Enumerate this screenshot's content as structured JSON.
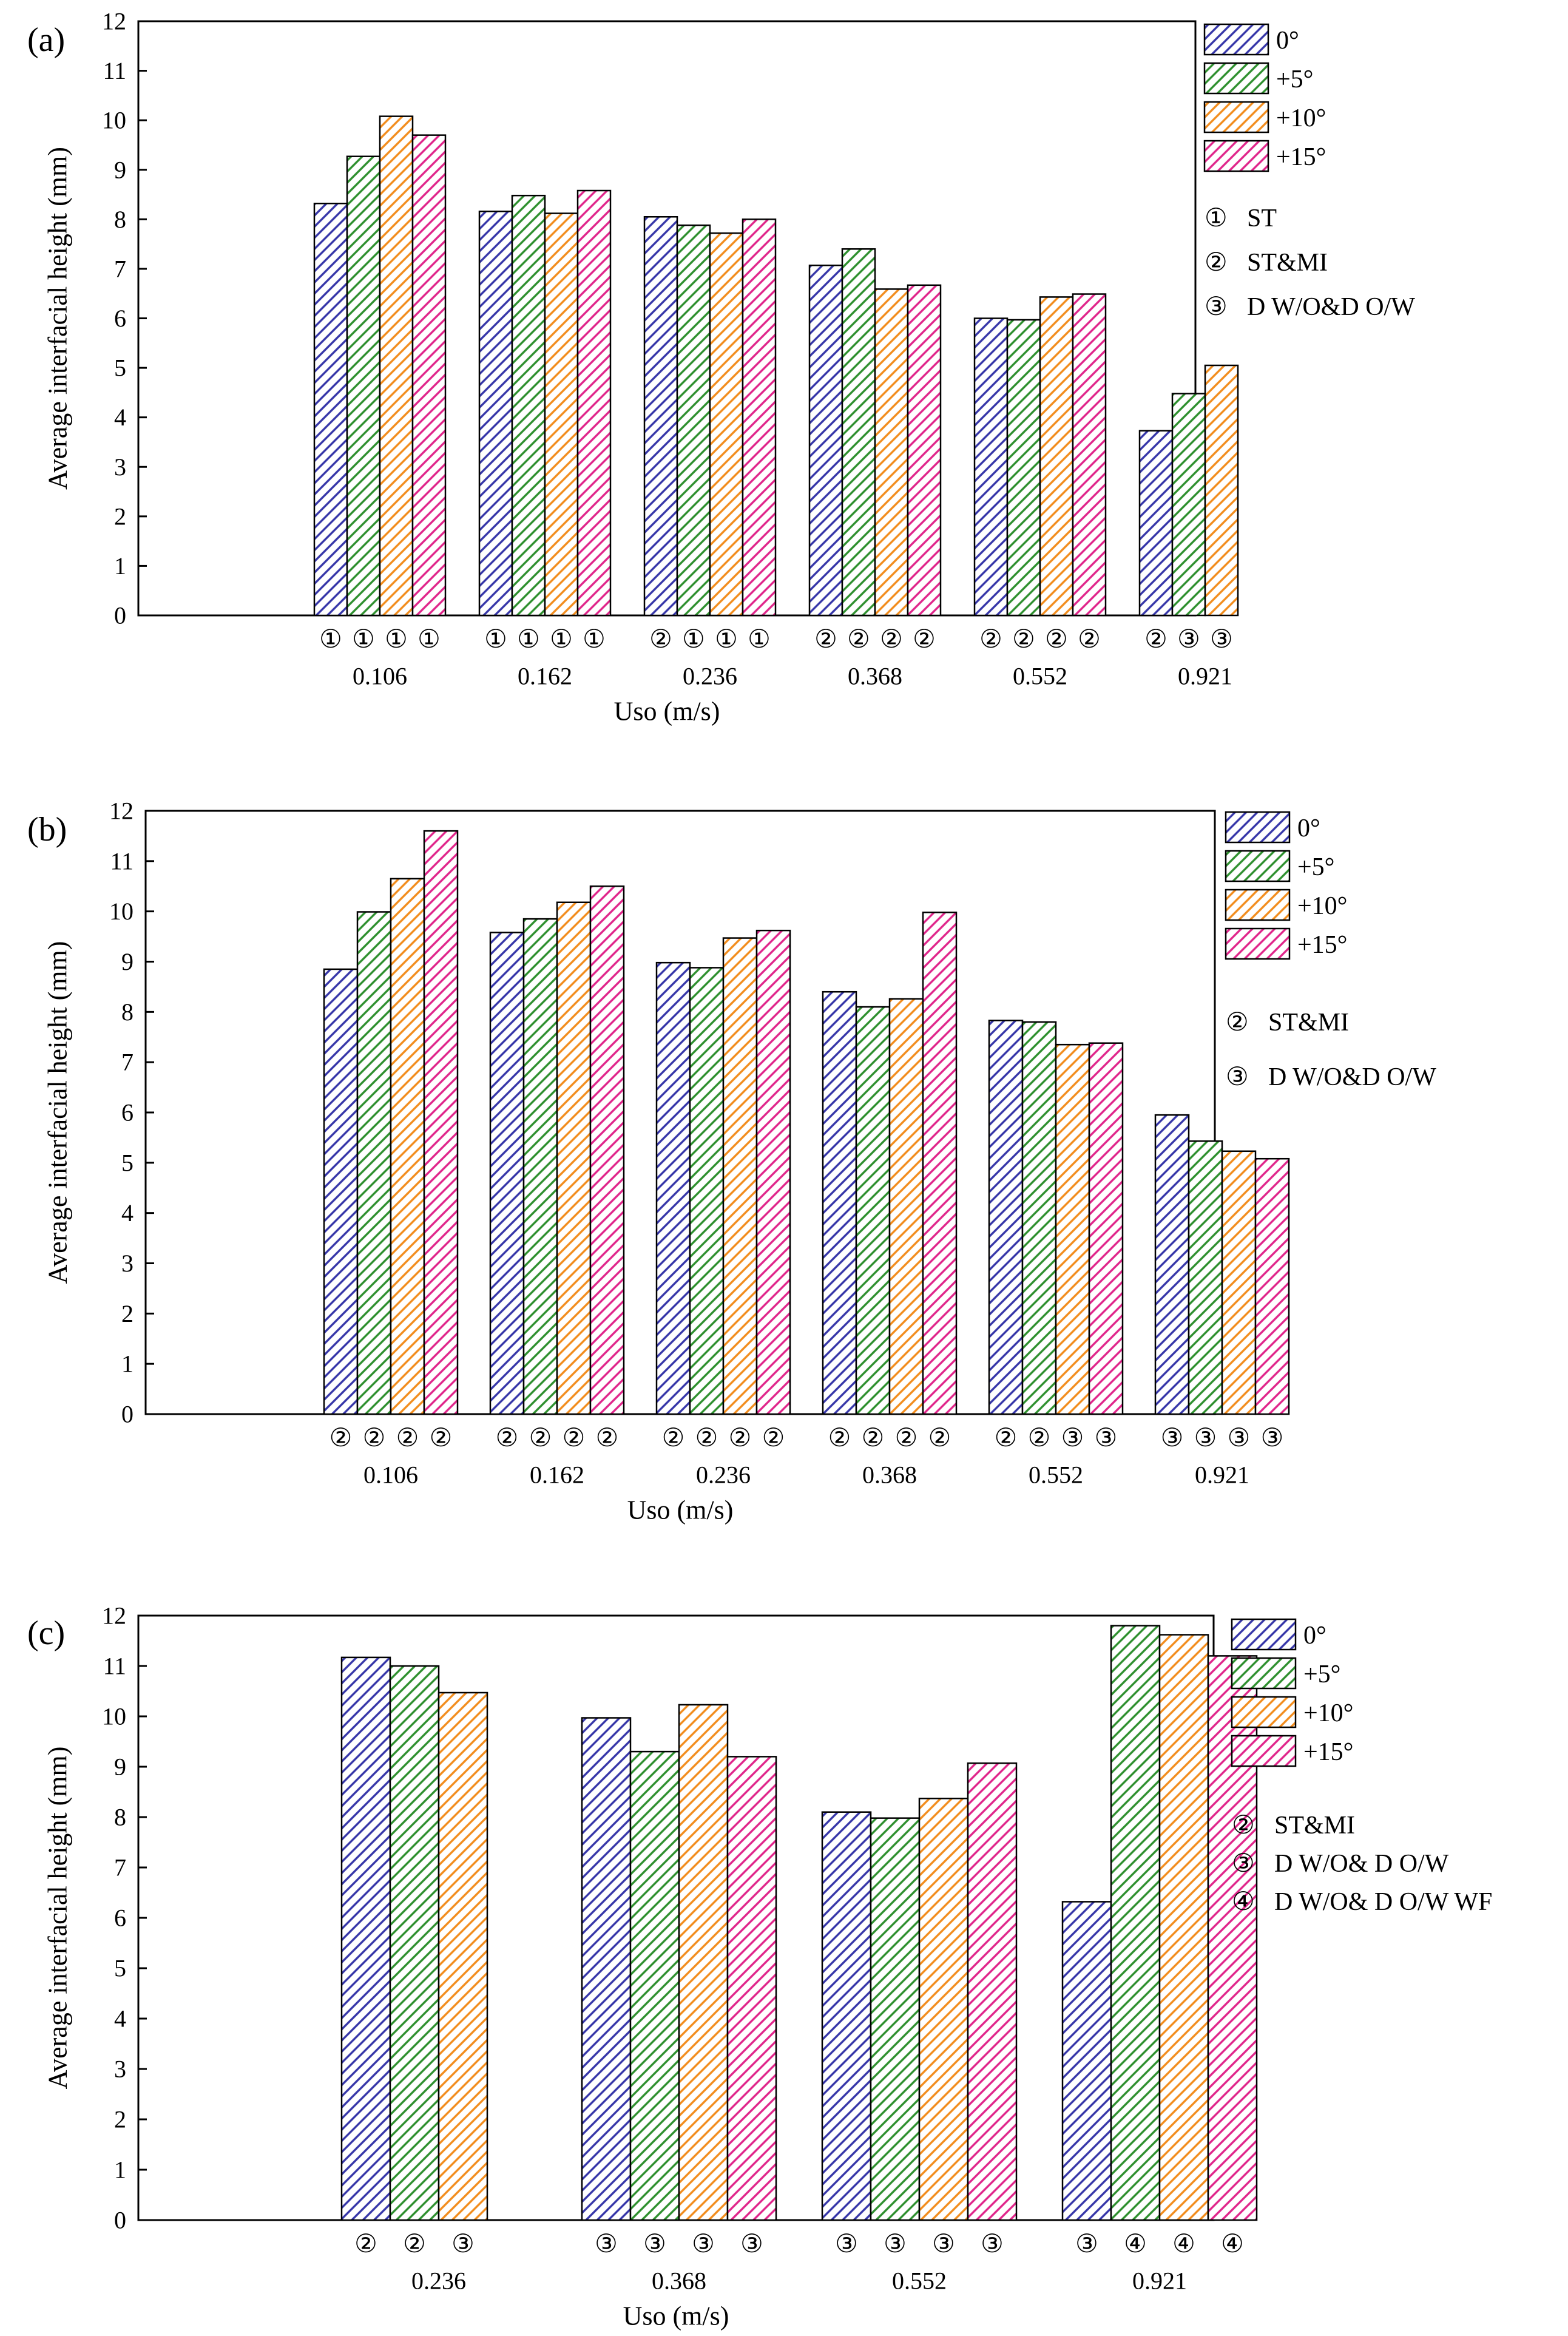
{
  "figure": {
    "legend_series": [
      {
        "name": "0°",
        "color": "#3535a8"
      },
      {
        "name": "+5°",
        "color": "#2d8f2d"
      },
      {
        "name": "+10°",
        "color": "#f28c1c"
      },
      {
        "name": "+15°",
        "color": "#e0248a"
      }
    ]
  },
  "chart_data": [
    {
      "type": "bar",
      "panel_label": "(a)",
      "title": "",
      "xlabel": "Uso (m/s)",
      "ylabel": "Average interfacial height (mm)",
      "ylim": [
        0,
        12
      ],
      "yticks": [
        0,
        1,
        2,
        3,
        4,
        5,
        6,
        7,
        8,
        9,
        10,
        11,
        12
      ],
      "categories": [
        "0.106",
        "0.162",
        "0.236",
        "0.368",
        "0.552",
        "0.921"
      ],
      "series": [
        {
          "name": "0°",
          "values": [
            8.32,
            8.16,
            8.05,
            7.07,
            6.0,
            3.73
          ]
        },
        {
          "name": "+5°",
          "values": [
            9.27,
            8.48,
            7.88,
            7.4,
            5.97,
            4.48
          ]
        },
        {
          "name": "+10°",
          "values": [
            10.08,
            8.12,
            7.72,
            6.59,
            6.43,
            5.05
          ]
        },
        {
          "name": "+15°",
          "values": [
            9.7,
            8.58,
            8.0,
            6.67,
            6.49,
            null
          ]
        }
      ],
      "regime_markers": [
        [
          "①",
          "①",
          "①",
          "①"
        ],
        [
          "①",
          "①",
          "①",
          "①"
        ],
        [
          "②",
          "①",
          "①",
          "①"
        ],
        [
          "②",
          "②",
          "②",
          "②"
        ],
        [
          "②",
          "②",
          "②",
          "②"
        ],
        [
          "②",
          "③",
          "③",
          null
        ]
      ],
      "regime_legend": [
        {
          "symbol": "①",
          "label": "ST"
        },
        {
          "symbol": "②",
          "label": "ST&MI"
        },
        {
          "symbol": "③",
          "label": "D W/O&D O/W"
        }
      ]
    },
    {
      "type": "bar",
      "panel_label": "(b)",
      "title": "",
      "xlabel": "Uso (m/s)",
      "ylabel": "Average interfacial height (mm)",
      "ylim": [
        0,
        12
      ],
      "yticks": [
        0,
        1,
        2,
        3,
        4,
        5,
        6,
        7,
        8,
        9,
        10,
        11,
        12
      ],
      "categories": [
        "0.106",
        "0.162",
        "0.236",
        "0.368",
        "0.552",
        "0.921"
      ],
      "series": [
        {
          "name": "0°",
          "values": [
            8.85,
            9.58,
            8.98,
            8.4,
            7.83,
            5.95
          ]
        },
        {
          "name": "+5°",
          "values": [
            9.99,
            9.85,
            8.88,
            8.1,
            7.8,
            5.43
          ]
        },
        {
          "name": "+10°",
          "values": [
            10.65,
            10.18,
            9.47,
            8.26,
            7.35,
            5.23
          ]
        },
        {
          "name": "+15°",
          "values": [
            11.6,
            10.5,
            9.62,
            9.98,
            7.38,
            5.08
          ]
        }
      ],
      "regime_markers": [
        [
          "②",
          "②",
          "②",
          "②"
        ],
        [
          "②",
          "②",
          "②",
          "②"
        ],
        [
          "②",
          "②",
          "②",
          "②"
        ],
        [
          "②",
          "②",
          "②",
          "②"
        ],
        [
          "②",
          "②",
          "③",
          "③"
        ],
        [
          "③",
          "③",
          "③",
          "③"
        ]
      ],
      "regime_legend": [
        {
          "symbol": "②",
          "label": "ST&MI"
        },
        {
          "symbol": "③",
          "label": "D W/O&D O/W"
        }
      ]
    },
    {
      "type": "bar",
      "panel_label": "(c)",
      "title": "",
      "xlabel": "Uso (m/s)",
      "ylabel": "Average interfacial height (mm)",
      "ylim": [
        0,
        12
      ],
      "yticks": [
        0,
        1,
        2,
        3,
        4,
        5,
        6,
        7,
        8,
        9,
        10,
        11,
        12
      ],
      "categories": [
        "0.236",
        "0.368",
        "0.552",
        "0.921"
      ],
      "series": [
        {
          "name": "0°",
          "values": [
            11.17,
            9.97,
            8.1,
            6.32
          ]
        },
        {
          "name": "+5°",
          "values": [
            11.0,
            9.3,
            7.98,
            11.8
          ]
        },
        {
          "name": "+10°",
          "values": [
            10.47,
            10.23,
            8.37,
            11.62
          ]
        },
        {
          "name": "+15°",
          "values": [
            null,
            9.2,
            9.07,
            11.2
          ]
        }
      ],
      "regime_markers": [
        [
          "②",
          "②",
          "③",
          null
        ],
        [
          "③",
          "③",
          "③",
          "③"
        ],
        [
          "③",
          "③",
          "③",
          "③"
        ],
        [
          "③",
          "④",
          "④",
          "④"
        ]
      ],
      "regime_legend": [
        {
          "symbol": "②",
          "label": "ST&MI"
        },
        {
          "symbol": "③",
          "label": "D W/O& D O/W"
        },
        {
          "symbol": "④",
          "label": "D W/O& D O/W WF"
        }
      ]
    }
  ]
}
